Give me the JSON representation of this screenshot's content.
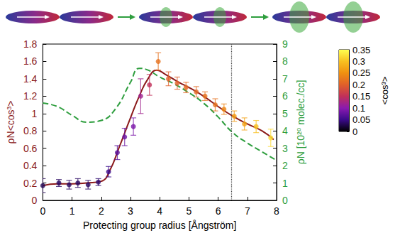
{
  "chart_data": {
    "type": "scatter",
    "xlabel": "Protecting group radius [Ångström]",
    "ylabel": "ρN<cos³>",
    "y2label": "ρN [10²⁰ molec./cc]",
    "xlim": [
      0,
      8
    ],
    "xticks": [
      0,
      1,
      2,
      3,
      4,
      5,
      6,
      7,
      8
    ],
    "ylim": [
      0,
      1.8
    ],
    "yticks": [
      0,
      0.2,
      0.4,
      0.6,
      0.8,
      1,
      1.2,
      1.4,
      1.6,
      1.8
    ],
    "y2lim": [
      0,
      9
    ],
    "y2ticks": [
      0,
      1,
      2,
      3,
      4,
      5,
      6,
      7,
      8,
      9
    ],
    "grid": false,
    "vertical_line_x": 6.45,
    "colorbar": {
      "label": "<cos³>",
      "range": [
        0,
        0.35
      ],
      "ticks": [
        0,
        0.05,
        0.1,
        0.15,
        0.2,
        0.25,
        0.3,
        0.35
      ]
    },
    "series": [
      {
        "type": "scatter",
        "marker": "circle",
        "x": [
          0,
          0.55,
          0.9,
          1.2,
          1.55,
          1.9,
          2.25,
          2.55,
          2.8,
          3.1,
          3.35,
          3.65,
          3.95,
          4.3,
          4.6,
          4.9,
          5.25,
          5.55,
          5.9,
          6.2,
          6.55,
          6.9,
          7.3,
          7.8
        ],
        "values": [
          0.17,
          0.2,
          0.18,
          0.2,
          0.18,
          0.21,
          0.33,
          0.55,
          0.73,
          0.85,
          1.2,
          1.33,
          1.6,
          1.4,
          1.35,
          1.3,
          1.25,
          1.2,
          1.1,
          1.05,
          0.97,
          0.88,
          0.85,
          0.72
        ],
        "errors": [
          0.08,
          0.04,
          0.05,
          0.05,
          0.05,
          0.04,
          0.06,
          0.08,
          0.1,
          0.1,
          0.2,
          0.12,
          0.1,
          0.08,
          0.07,
          0.06,
          0.06,
          0.05,
          0.07,
          0.06,
          0.06,
          0.07,
          0.07,
          0.1
        ],
        "cos3": [
          0.03,
          0.035,
          0.035,
          0.035,
          0.035,
          0.04,
          0.05,
          0.07,
          0.08,
          0.09,
          0.12,
          0.15,
          0.22,
          0.2,
          0.2,
          0.21,
          0.21,
          0.22,
          0.22,
          0.24,
          0.26,
          0.27,
          0.3,
          0.32
        ]
      },
      {
        "type": "line",
        "color": "#8b1a1a",
        "line_style": "solid",
        "x": [
          0,
          0.5,
          1,
          1.5,
          2,
          2.3,
          2.6,
          3,
          3.3,
          3.6,
          3.9,
          4.2,
          4.6,
          5,
          5.5,
          6,
          6.5,
          7,
          7.5,
          7.9
        ],
        "values": [
          0.17,
          0.19,
          0.19,
          0.2,
          0.22,
          0.35,
          0.6,
          0.95,
          1.2,
          1.4,
          1.5,
          1.45,
          1.37,
          1.3,
          1.2,
          1.08,
          0.97,
          0.88,
          0.8,
          0.7
        ]
      },
      {
        "type": "line",
        "axis": "y2",
        "color": "#2e9e3e",
        "line_style": "dashed",
        "x": [
          0,
          0.5,
          1,
          1.5,
          2,
          2.5,
          3,
          3.3,
          3.6,
          4,
          4.5,
          5,
          5.5,
          6,
          6.5,
          7,
          7.5,
          8
        ],
        "values": [
          5.6,
          5.4,
          4.9,
          4.5,
          4.6,
          5.3,
          6.8,
          7.6,
          7.5,
          7.1,
          6.7,
          6.2,
          5.6,
          4.8,
          3.9,
          3.3,
          2.8,
          2.3
        ]
      }
    ]
  }
}
